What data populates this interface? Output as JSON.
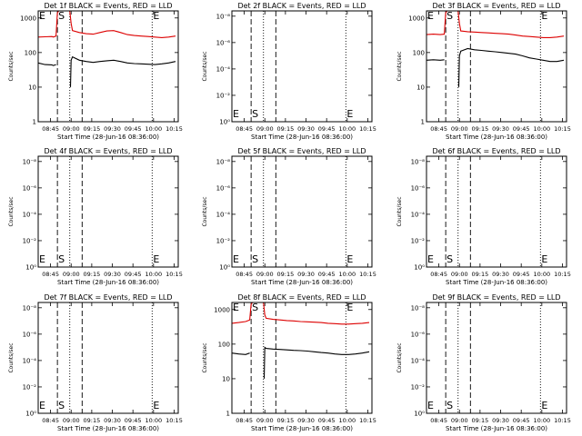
{
  "chart_data": {
    "type": "line",
    "grid_layout": "3x3",
    "xlabel": "Start Time (28-Jun-16 08:36:00)",
    "ylabel": "Counts/sec",
    "x_tick_labels": [
      "08:45",
      "09:00",
      "09:15",
      "09:30",
      "09:45",
      "10:00",
      "10:15"
    ],
    "x_ticks_minutes": [
      9,
      24,
      39,
      54,
      69,
      84,
      99
    ],
    "x_range_minutes": [
      0,
      102
    ],
    "markers": [
      {
        "label": "E",
        "minute": 0,
        "style": "dotted"
      },
      {
        "label": "S",
        "minute": 14,
        "style": "dashed"
      },
      {
        "label": "",
        "minute": 23,
        "style": "dotted"
      },
      {
        "label": "",
        "minute": 32,
        "style": "dashed"
      },
      {
        "label": "E",
        "minute": 83,
        "style": "dotted"
      }
    ],
    "series_colors": {
      "events": "#000000",
      "lld": "#dd0000"
    },
    "panels": [
      {
        "title": "Det 1f BLACK = Events, RED = LLD",
        "scale": "counts",
        "y_tick_labels": [
          "1",
          "10",
          "100",
          "1000"
        ],
        "series": [
          {
            "color": "#dd0000",
            "x": [
              0,
              5,
              10,
              11,
              13,
              14,
              15,
              22,
              23,
              24,
              25,
              30,
              35,
              40,
              45,
              50,
              55,
              60,
              65,
              70,
              75,
              80,
              85,
              90,
              95,
              100
            ],
            "y": [
              280,
              285,
              290,
              280,
              300,
              1400,
              2000,
              2000,
              2000,
              700,
              430,
              380,
              350,
              340,
              380,
              420,
              430,
              380,
              330,
              310,
              300,
              290,
              280,
              270,
              280,
              300
            ]
          },
          {
            "color": "#000000",
            "x": [
              0,
              5,
              10,
              11,
              13,
              14,
              23,
              23.5,
              24,
              25,
              30,
              35,
              40,
              45,
              50,
              55,
              60,
              65,
              70,
              75,
              80,
              85,
              90,
              95,
              100
            ],
            "y": [
              50,
              45,
              44,
              42,
              45,
              null,
              null,
              10,
              60,
              75,
              60,
              55,
              52,
              55,
              58,
              60,
              55,
              50,
              48,
              47,
              46,
              45,
              47,
              50,
              55
            ]
          }
        ]
      },
      {
        "title": "Det 2f BLACK = Events, RED = LLD",
        "scale": "empty",
        "y_tick_labels": [
          "10⁰",
          "10⁻²",
          "10⁻⁴",
          "10⁻⁶",
          "10⁻⁸"
        ],
        "series": []
      },
      {
        "title": "Det 3f BLACK = Events, RED = LLD",
        "scale": "counts",
        "y_tick_labels": [
          "1",
          "10",
          "100",
          "1000"
        ],
        "series": [
          {
            "color": "#dd0000",
            "x": [
              0,
              5,
              10,
              13,
              14,
              15,
              22,
              23,
              24,
              25,
              30,
              35,
              40,
              45,
              50,
              55,
              60,
              65,
              70,
              75,
              80,
              85,
              90,
              95,
              100
            ],
            "y": [
              330,
              340,
              330,
              340,
              1400,
              2000,
              2000,
              2000,
              700,
              420,
              400,
              390,
              380,
              370,
              360,
              350,
              340,
              320,
              300,
              290,
              280,
              270,
              270,
              280,
              300
            ]
          },
          {
            "color": "#000000",
            "x": [
              0,
              5,
              10,
              13,
              14,
              23,
              23.5,
              24,
              25,
              30,
              35,
              40,
              45,
              50,
              55,
              60,
              65,
              70,
              75,
              80,
              85,
              90,
              95,
              100
            ],
            "y": [
              60,
              62,
              60,
              62,
              null,
              null,
              10,
              80,
              110,
              130,
              120,
              115,
              110,
              105,
              100,
              95,
              90,
              80,
              70,
              65,
              60,
              55,
              55,
              60
            ]
          }
        ]
      },
      {
        "title": "Det 4f BLACK = Events, RED = LLD",
        "scale": "empty",
        "y_tick_labels": [
          "10⁰",
          "10⁻²",
          "10⁻⁴",
          "10⁻⁶",
          "10⁻⁸"
        ],
        "series": []
      },
      {
        "title": "Det 5f BLACK = Events, RED = LLD",
        "scale": "empty",
        "y_tick_labels": [
          "10⁰",
          "10⁻²",
          "10⁻⁴",
          "10⁻⁶",
          "10⁻⁸"
        ],
        "series": []
      },
      {
        "title": "Det 6f BLACK = Events, RED = LLD",
        "scale": "empty",
        "y_tick_labels": [
          "10⁰",
          "10⁻²",
          "10⁻⁴",
          "10⁻⁶",
          "10⁻⁸"
        ],
        "series": []
      },
      {
        "title": "Det 7f BLACK = Events, RED = LLD",
        "scale": "empty",
        "y_tick_labels": [
          "10⁰",
          "10⁻²",
          "10⁻⁴",
          "10⁻⁶",
          "10⁻⁸"
        ],
        "series": []
      },
      {
        "title": "Det 8f BLACK = Events, RED = LLD",
        "scale": "counts",
        "y_tick_labels": [
          "1",
          "10",
          "100",
          "1000"
        ],
        "series": [
          {
            "color": "#dd0000",
            "x": [
              0,
              5,
              10,
              13,
              14,
              15,
              22,
              23,
              24,
              25,
              30,
              35,
              40,
              45,
              50,
              55,
              60,
              65,
              70,
              75,
              80,
              85,
              90,
              95,
              100
            ],
            "y": [
              400,
              420,
              450,
              500,
              1400,
              2000,
              2000,
              2000,
              700,
              560,
              520,
              500,
              480,
              470,
              450,
              440,
              430,
              420,
              400,
              390,
              380,
              380,
              390,
              400,
              420
            ]
          },
          {
            "color": "#000000",
            "x": [
              0,
              5,
              10,
              13,
              14,
              23,
              23.5,
              24,
              25,
              30,
              35,
              40,
              45,
              50,
              55,
              60,
              65,
              70,
              75,
              80,
              85,
              90,
              95,
              100
            ],
            "y": [
              55,
              52,
              50,
              55,
              null,
              null,
              10,
              80,
              75,
              72,
              70,
              68,
              66,
              65,
              63,
              60,
              57,
              55,
              52,
              50,
              50,
              52,
              55,
              60
            ]
          }
        ]
      },
      {
        "title": "Det 9f BLACK = Events, RED = LLD",
        "scale": "empty",
        "y_tick_labels": [
          "10⁰",
          "10⁻²",
          "10⁻⁴",
          "10⁻⁶",
          "10⁻⁸"
        ],
        "series": []
      }
    ]
  }
}
